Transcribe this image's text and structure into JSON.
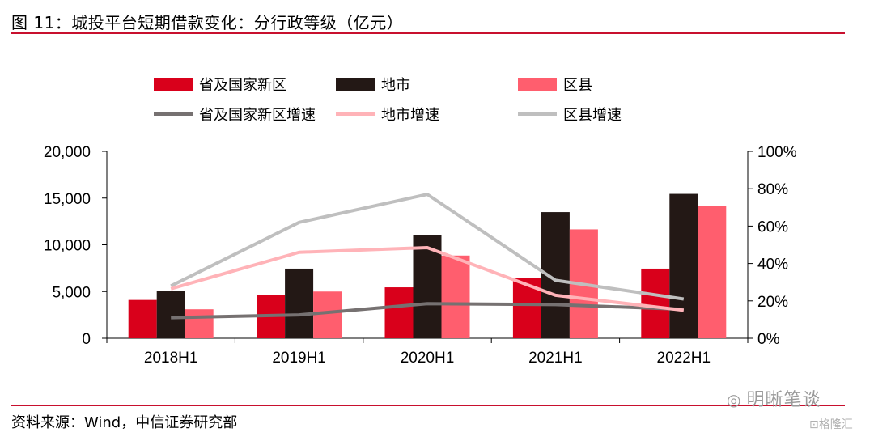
{
  "title": "图 11：城投平台短期借款变化：分行政等级（亿元）",
  "source": "资料来源：Wind，中信证券研究部",
  "watermark": "明晰笔谈",
  "watermark2": "格隆汇",
  "chart_data": {
    "type": "bar",
    "title": "图 11：城投平台短期借款变化：分行政等级（亿元）",
    "categories": [
      "2018H1",
      "2019H1",
      "2020H1",
      "2021H1",
      "2022H1"
    ],
    "series": [
      {
        "name": "省及国家新区",
        "type": "bar",
        "axis": "left",
        "color": "#d9001b",
        "values": [
          4100,
          4600,
          5450,
          6450,
          7450
        ]
      },
      {
        "name": "地市",
        "type": "bar",
        "axis": "left",
        "color": "#231815",
        "values": [
          5100,
          7450,
          11000,
          13500,
          15450
        ]
      },
      {
        "name": "区县",
        "type": "bar",
        "axis": "left",
        "color": "#ff5e6e",
        "values": [
          3100,
          5000,
          8850,
          11650,
          14150
        ]
      },
      {
        "name": "省及国家新区增速",
        "type": "line",
        "axis": "right",
        "color": "#767171",
        "values": [
          0.11,
          0.125,
          0.185,
          0.18,
          0.155
        ]
      },
      {
        "name": "地市增速",
        "type": "line",
        "axis": "right",
        "color": "#ffb3b8",
        "values": [
          0.265,
          0.46,
          0.485,
          0.23,
          0.15
        ]
      },
      {
        "name": "区县增速",
        "type": "line",
        "axis": "right",
        "color": "#bfbfbf",
        "values": [
          0.28,
          0.62,
          0.77,
          0.31,
          0.21
        ]
      }
    ],
    "y_left": {
      "ticks": [
        "0",
        "5,000",
        "10,000",
        "15,000",
        "20,000"
      ],
      "ylim": [
        0,
        20000
      ]
    },
    "y_right": {
      "ticks": [
        "0%",
        "20%",
        "40%",
        "60%",
        "80%",
        "100%"
      ],
      "ylim": [
        0,
        1
      ]
    },
    "legend_position": "top",
    "grid": false
  }
}
